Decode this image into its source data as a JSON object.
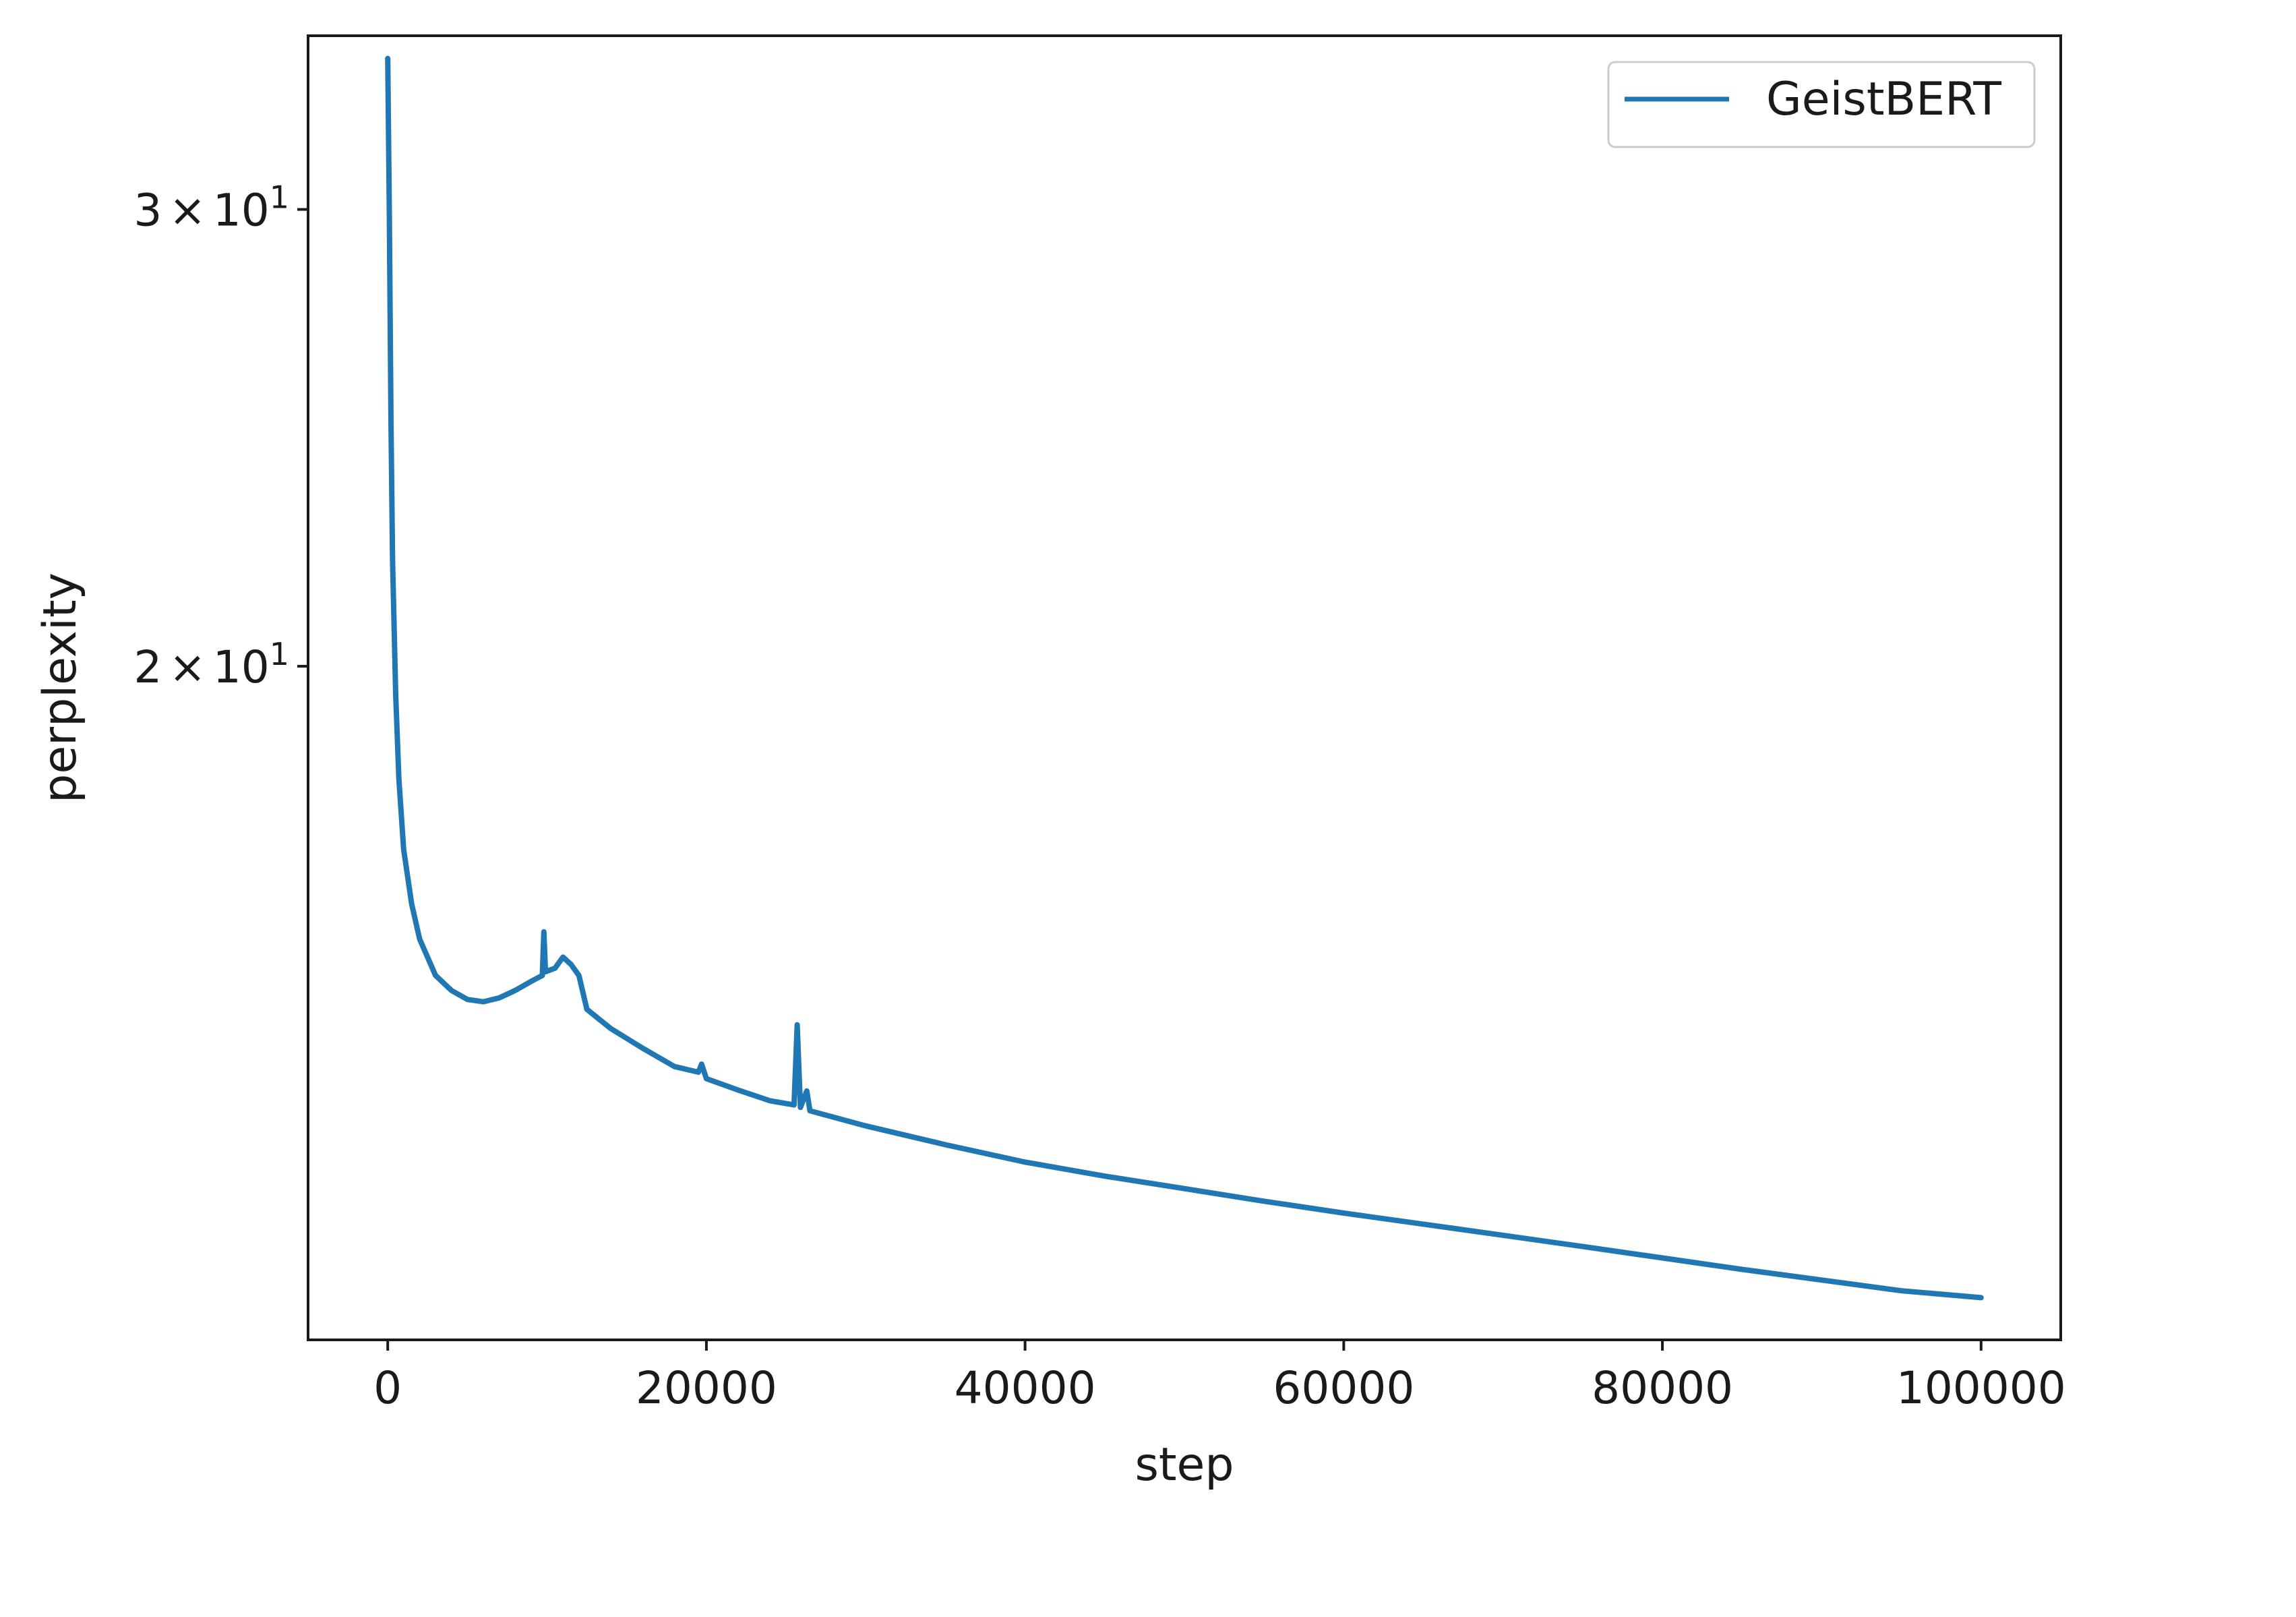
{
  "chart_data": {
    "type": "line",
    "xlabel": "step",
    "ylabel": "perplexity",
    "xlim": [
      -5000,
      105000
    ],
    "ylim": [
      11.0,
      35.0
    ],
    "yscale": "log",
    "grid": false,
    "legend_position": "top-right",
    "x_ticks": [
      {
        "value": 0,
        "label": "0"
      },
      {
        "value": 20000,
        "label": "20000"
      },
      {
        "value": 40000,
        "label": "40000"
      },
      {
        "value": 60000,
        "label": "60000"
      },
      {
        "value": 80000,
        "label": "80000"
      },
      {
        "value": 100000,
        "label": "100000"
      }
    ],
    "y_ticks": [
      {
        "value": 30,
        "mantissa": "3",
        "times": "×",
        "base": "10",
        "exponent": "1"
      },
      {
        "value": 20,
        "mantissa": "2",
        "times": "×",
        "base": "10",
        "exponent": "1"
      }
    ],
    "series": [
      {
        "name": "GeistBERT",
        "color": "#1f77b4",
        "points": [
          [
            0,
            34.3
          ],
          [
            100,
            30.0
          ],
          [
            200,
            25.0
          ],
          [
            300,
            22.0
          ],
          [
            500,
            19.5
          ],
          [
            700,
            18.1
          ],
          [
            1000,
            17.0
          ],
          [
            1500,
            16.2
          ],
          [
            2000,
            15.7
          ],
          [
            3000,
            15.2
          ],
          [
            4000,
            15.0
          ],
          [
            5000,
            14.88
          ],
          [
            6000,
            14.85
          ],
          [
            7000,
            14.9
          ],
          [
            8000,
            15.0
          ],
          [
            9000,
            15.12
          ],
          [
            9700,
            15.2
          ],
          [
            9800,
            15.8
          ],
          [
            9900,
            15.25
          ],
          [
            10500,
            15.3
          ],
          [
            11000,
            15.45
          ],
          [
            11500,
            15.35
          ],
          [
            12000,
            15.2
          ],
          [
            12500,
            14.75
          ],
          [
            14000,
            14.5
          ],
          [
            16000,
            14.25
          ],
          [
            18000,
            14.02
          ],
          [
            19500,
            13.95
          ],
          [
            19700,
            14.05
          ],
          [
            20000,
            13.87
          ],
          [
            22000,
            13.73
          ],
          [
            24000,
            13.6
          ],
          [
            25500,
            13.55
          ],
          [
            25700,
            14.55
          ],
          [
            25900,
            13.52
          ],
          [
            26300,
            13.72
          ],
          [
            26500,
            13.48
          ],
          [
            30000,
            13.3
          ],
          [
            35000,
            13.08
          ],
          [
            40000,
            12.88
          ],
          [
            45000,
            12.72
          ],
          [
            50000,
            12.58
          ],
          [
            55000,
            12.44
          ],
          [
            60000,
            12.31
          ],
          [
            65000,
            12.19
          ],
          [
            70000,
            12.07
          ],
          [
            75000,
            11.95
          ],
          [
            80000,
            11.83
          ],
          [
            85000,
            11.71
          ],
          [
            90000,
            11.6
          ],
          [
            95000,
            11.49
          ],
          [
            100000,
            11.42
          ]
        ]
      }
    ]
  }
}
